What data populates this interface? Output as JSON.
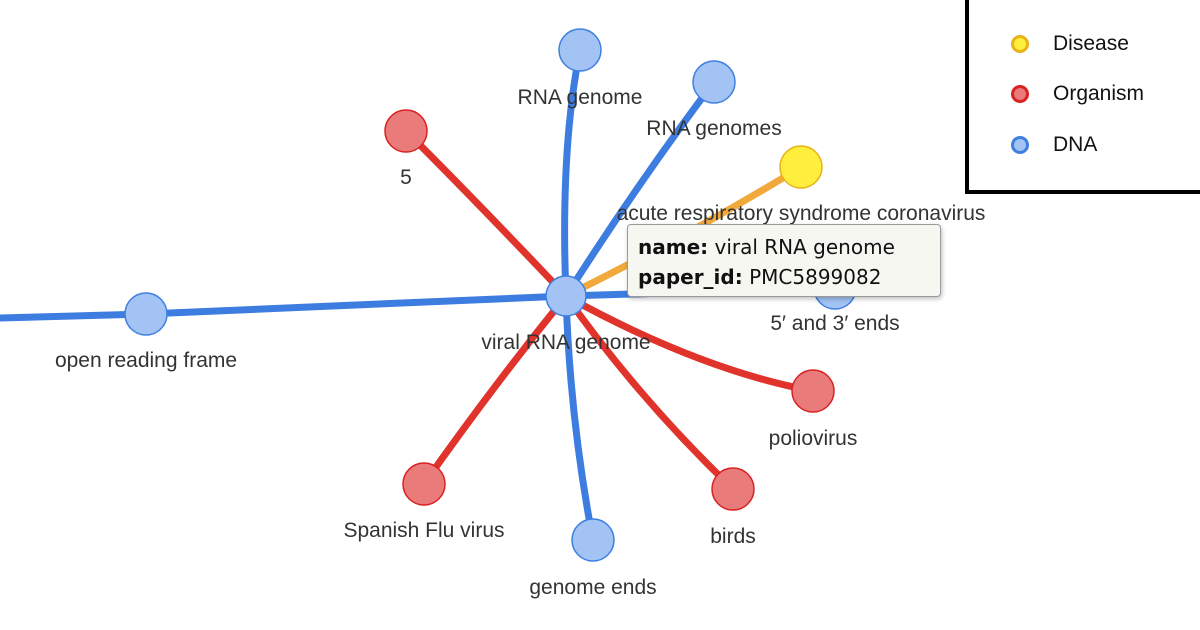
{
  "colors": {
    "Disease": {
      "fill": "#ffef3c",
      "stroke": "#e8b21a",
      "edge": "#f2a93b"
    },
    "Organism": {
      "fill": "#ea7b7b",
      "stroke": "#d92222",
      "edge": "#e0332b"
    },
    "DNA": {
      "fill": "#a3c3f5",
      "stroke": "#3f7fe0",
      "edge": "#3d7de0"
    }
  },
  "legend": {
    "items": [
      {
        "label": "Disease",
        "type": "Disease"
      },
      {
        "label": "Organism",
        "type": "Organism"
      },
      {
        "label": "DNA",
        "type": "DNA"
      }
    ]
  },
  "graph": {
    "center": {
      "id": "viral-rna-genome",
      "label": "viral RNA genome",
      "type": "DNA"
    },
    "nodes": [
      {
        "id": "rna-genome",
        "label": "RNA genome",
        "type": "DNA"
      },
      {
        "id": "rna-genomes",
        "label": "RNA genomes",
        "type": "DNA"
      },
      {
        "id": "five",
        "label": "5",
        "type": "Organism"
      },
      {
        "id": "acute-resp",
        "label": "acute respiratory syndrome coronavirus",
        "type": "Disease"
      },
      {
        "id": "five-three-ends",
        "label": "5′ and 3′ ends",
        "type": "DNA"
      },
      {
        "id": "orf",
        "label": "open reading frame",
        "type": "DNA"
      },
      {
        "id": "poliovirus",
        "label": "poliovirus",
        "type": "Organism"
      },
      {
        "id": "birds",
        "label": "birds",
        "type": "Organism"
      },
      {
        "id": "genome-ends",
        "label": "genome ends",
        "type": "DNA"
      },
      {
        "id": "spanish-flu",
        "label": "Spanish Flu virus",
        "type": "Organism"
      },
      {
        "id": "offscreen-left",
        "label": "",
        "type": "DNA"
      }
    ]
  },
  "tooltip": {
    "name_key": "name:",
    "name_value": "viral RNA genome",
    "paper_key": "paper_id:",
    "paper_value": "PMC5899082"
  }
}
